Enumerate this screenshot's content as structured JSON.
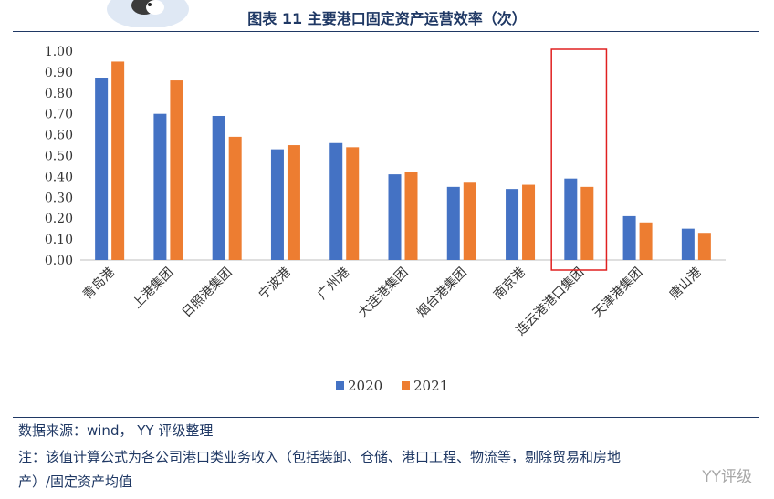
{
  "header": {
    "title": "图表 11 主要港口固定资产运营效率（次）"
  },
  "chart_data": {
    "type": "bar",
    "title": "图表 11 主要港口固定资产运营效率（次）",
    "categories": [
      "青岛港",
      "上港集团",
      "日照港集团",
      "宁波港",
      "广州港",
      "大连港集团",
      "烟台港集团",
      "南京港",
      "连云港港口集团",
      "天津港集团",
      "唐山港"
    ],
    "series": [
      {
        "name": "2020",
        "values": [
          0.87,
          0.7,
          0.69,
          0.53,
          0.56,
          0.41,
          0.35,
          0.34,
          0.39,
          0.21,
          0.15
        ]
      },
      {
        "name": "2021",
        "values": [
          0.95,
          0.86,
          0.59,
          0.55,
          0.54,
          0.42,
          0.37,
          0.36,
          0.35,
          0.18,
          0.13
        ]
      }
    ],
    "y_ticks": [
      "0.00",
      "0.10",
      "0.20",
      "0.30",
      "0.40",
      "0.50",
      "0.60",
      "0.70",
      "0.80",
      "0.90",
      "1.00"
    ],
    "ylim": [
      0,
      1.0
    ],
    "xlabel": "",
    "ylabel": "",
    "grid": false,
    "legend_position": "bottom",
    "highlight_category": "连云港港口集团",
    "colors": {
      "2020": "#4472c4",
      "2021": "#ed7d31",
      "highlight": "#e02020",
      "text": "#1f3864"
    }
  },
  "footer": {
    "source": "数据来源：wind， YY 评级整理",
    "note_line1": "注：该值计算公式为各公司港口类业务收入（包括装卸、仓储、港口工程、物流等，剔除贸易和房地",
    "note_line2": "产）/固定资产均值",
    "watermark": "YY评级"
  }
}
